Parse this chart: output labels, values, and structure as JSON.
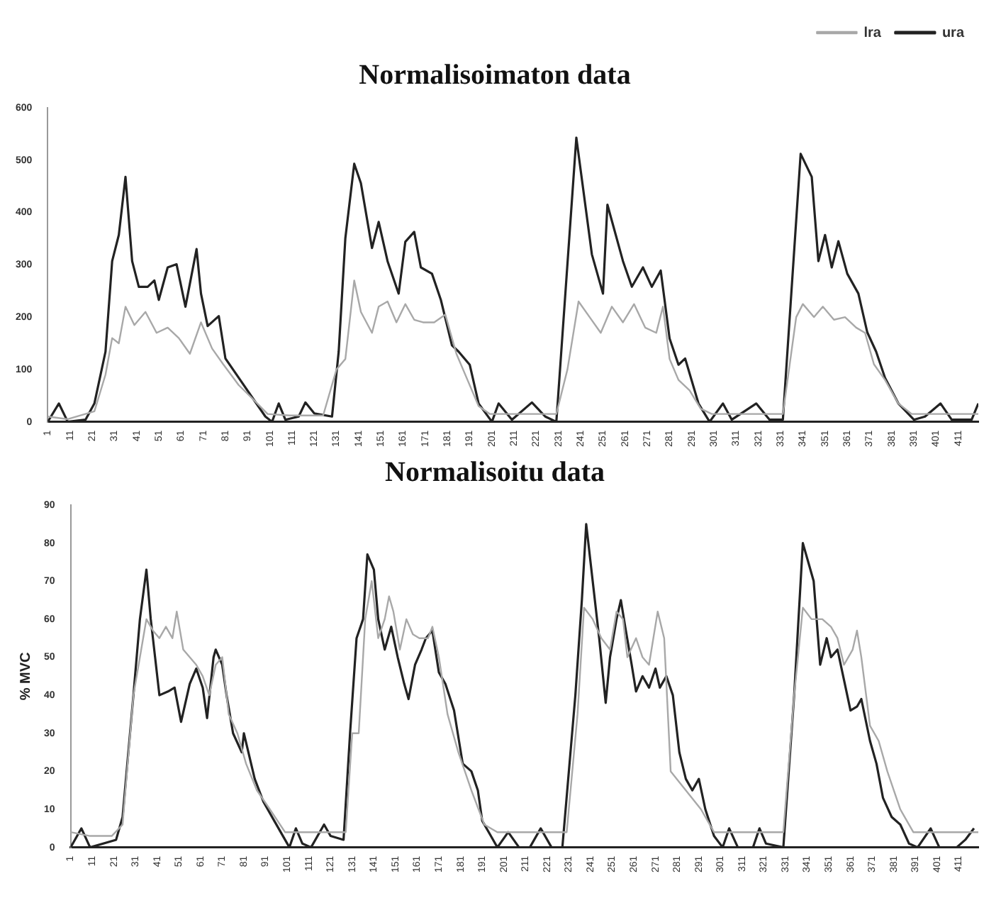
{
  "chart_data": [
    {
      "type": "line",
      "title": "Normalisoimaton data",
      "xlim": [
        1,
        420
      ],
      "xticks": [
        1,
        11,
        21,
        31,
        41,
        51,
        61,
        71,
        81,
        91,
        101,
        111,
        121,
        131,
        141,
        151,
        161,
        171,
        181,
        191,
        201,
        211,
        221,
        231,
        241,
        251,
        261,
        271,
        281,
        291,
        301,
        311,
        321,
        331,
        341,
        351,
        361,
        371,
        381,
        391,
        401,
        411
      ],
      "ylim": [
        0,
        600
      ],
      "yticks": [
        0,
        100,
        200,
        300,
        400,
        500,
        600
      ],
      "legend": "top right",
      "grid": false,
      "marker": "none",
      "series": [
        {
          "name": "lra",
          "color": "#a8a8a8",
          "x": [
            1,
            10,
            22,
            27,
            30,
            33,
            36,
            40,
            45,
            50,
            55,
            60,
            65,
            70,
            75,
            80,
            87,
            93,
            100,
            110,
            125,
            131,
            135,
            139,
            142,
            147,
            150,
            154,
            158,
            162,
            166,
            170,
            175,
            180,
            185,
            190,
            195,
            200,
            230,
            235,
            240,
            245,
            250,
            255,
            260,
            265,
            270,
            275,
            278,
            281,
            285,
            290,
            295,
            300,
            332,
            338,
            341,
            346,
            350,
            355,
            360,
            365,
            369,
            373,
            378,
            384,
            390,
            420
          ],
          "values": [
            10,
            5,
            20,
            90,
            160,
            150,
            220,
            185,
            210,
            170,
            180,
            160,
            130,
            190,
            140,
            110,
            70,
            45,
            15,
            12,
            12,
            100,
            120,
            270,
            210,
            170,
            220,
            230,
            190,
            225,
            195,
            190,
            190,
            205,
            130,
            80,
            30,
            15,
            15,
            100,
            230,
            200,
            170,
            220,
            190,
            225,
            180,
            170,
            220,
            120,
            80,
            60,
            25,
            15,
            15,
            200,
            225,
            200,
            220,
            195,
            200,
            180,
            170,
            110,
            80,
            35,
            15,
            15
          ]
        },
        {
          "name": "ura",
          "color": "#222222",
          "x": [
            1,
            6,
            10,
            18,
            22,
            27,
            30,
            33,
            36,
            39,
            42,
            46,
            49,
            51,
            55,
            59,
            63,
            68,
            70,
            73,
            78,
            81,
            87,
            93,
            99,
            102,
            105,
            108,
            114,
            117,
            121,
            129,
            132,
            135,
            139,
            142,
            147,
            150,
            154,
            159,
            162,
            166,
            169,
            174,
            178,
            183,
            186,
            191,
            195,
            201,
            204,
            210,
            219,
            225,
            230,
            239,
            246,
            251,
            253,
            260,
            264,
            269,
            273,
            277,
            281,
            285,
            288,
            294,
            299,
            305,
            309,
            320,
            326,
            332,
            340,
            345,
            348,
            351,
            354,
            357,
            361,
            366,
            370,
            374,
            378,
            384,
            391,
            396,
            403,
            408,
            417,
            420
          ],
          "values": [
            0,
            35,
            0,
            4,
            35,
            134,
            307,
            357,
            468,
            307,
            258,
            258,
            270,
            233,
            295,
            301,
            220,
            330,
            245,
            183,
            202,
            121,
            84,
            47,
            10,
            0,
            35,
            4,
            10,
            37,
            16,
            10,
            134,
            351,
            493,
            456,
            332,
            382,
            307,
            245,
            344,
            363,
            295,
            283,
            233,
            146,
            134,
            109,
            35,
            0,
            35,
            4,
            37,
            10,
            0,
            543,
            320,
            245,
            415,
            307,
            258,
            295,
            258,
            289,
            159,
            109,
            121,
            35,
            0,
            35,
            4,
            35,
            4,
            4,
            512,
            468,
            307,
            357,
            295,
            345,
            283,
            245,
            171,
            134,
            84,
            35,
            4,
            10,
            35,
            4,
            4,
            35
          ]
        }
      ]
    },
    {
      "type": "line",
      "title": "Normalisoitu data",
      "ylabel": "% MVC",
      "xlim": [
        1,
        420
      ],
      "xticks": [
        1,
        11,
        21,
        31,
        41,
        51,
        61,
        71,
        81,
        91,
        101,
        111,
        121,
        131,
        141,
        151,
        161,
        171,
        181,
        191,
        201,
        211,
        221,
        231,
        241,
        251,
        261,
        271,
        281,
        291,
        301,
        311,
        321,
        331,
        341,
        351,
        361,
        371,
        381,
        391,
        401,
        411
      ],
      "ylim": [
        0,
        90
      ],
      "yticks": [
        0,
        10,
        20,
        30,
        40,
        50,
        60,
        70,
        80,
        90
      ],
      "grid": false,
      "marker": "none",
      "series": [
        {
          "color": "#a8a8a8",
          "x": [
            1,
            10,
            20,
            25,
            30,
            33,
            36,
            39,
            42,
            45,
            48,
            50,
            53,
            56,
            59,
            62,
            65,
            68,
            71,
            74,
            78,
            82,
            87,
            93,
            100,
            110,
            128,
            131,
            134,
            137,
            140,
            143,
            146,
            148,
            150,
            153,
            156,
            159,
            162,
            166,
            168,
            171,
            175,
            180,
            186,
            192,
            198,
            230,
            235,
            238,
            242,
            246,
            250,
            253,
            256,
            258,
            262,
            265,
            268,
            272,
            275,
            278,
            285,
            292,
            298,
            330,
            335,
            339,
            343,
            348,
            352,
            355,
            358,
            362,
            364,
            366,
            370,
            374,
            378,
            384,
            390,
            420
          ],
          "values": [
            4,
            3,
            3,
            6,
            40,
            50,
            60,
            57,
            55,
            58,
            55,
            62,
            52,
            50,
            48,
            45,
            40,
            48,
            50,
            35,
            30,
            22,
            15,
            10,
            4,
            4,
            4,
            30,
            30,
            60,
            70,
            55,
            60,
            66,
            62,
            52,
            60,
            56,
            55,
            55,
            58,
            50,
            35,
            25,
            15,
            6,
            4,
            4,
            35,
            63,
            60,
            55,
            52,
            62,
            60,
            50,
            55,
            50,
            48,
            62,
            55,
            20,
            15,
            10,
            4,
            4,
            40,
            63,
            60,
            60,
            58,
            55,
            48,
            52,
            57,
            50,
            32,
            28,
            20,
            10,
            4,
            4
          ]
        },
        {
          "color": "#222222",
          "x": [
            1,
            6,
            10,
            22,
            25,
            30,
            33,
            36,
            38,
            42,
            46,
            49,
            52,
            56,
            59,
            62,
            64,
            67,
            68,
            71,
            73,
            76,
            80,
            81,
            86,
            90,
            95,
            100,
            102,
            105,
            108,
            112,
            118,
            121,
            127,
            130,
            133,
            136,
            138,
            141,
            143,
            146,
            149,
            152,
            155,
            157,
            160,
            163,
            165,
            168,
            171,
            174,
            178,
            182,
            186,
            189,
            191,
            195,
            198,
            203,
            208,
            213,
            218,
            223,
            228,
            234,
            237,
            239,
            242,
            245,
            248,
            250,
            253,
            255,
            257,
            260,
            262,
            265,
            268,
            271,
            273,
            276,
            279,
            282,
            285,
            288,
            291,
            294,
            298,
            302,
            305,
            309,
            316,
            319,
            322,
            330,
            335,
            339,
            342,
            344,
            347,
            350,
            352,
            355,
            358,
            361,
            364,
            366,
            370,
            373,
            376,
            380,
            384,
            388,
            392,
            398,
            402,
            410,
            414,
            418
          ],
          "values": [
            0,
            5,
            0,
            2,
            8,
            40,
            60,
            73,
            60,
            40,
            41,
            42,
            33,
            43,
            47,
            42,
            34,
            50,
            52,
            48,
            40,
            30,
            25,
            30,
            18,
            12,
            7,
            2,
            0,
            5,
            1,
            0,
            6,
            3,
            2,
            30,
            55,
            60,
            77,
            73,
            60,
            52,
            58,
            50,
            43,
            39,
            48,
            52,
            55,
            57,
            46,
            43,
            36,
            22,
            20,
            15,
            7,
            3,
            0,
            4,
            0,
            0,
            5,
            0,
            0,
            40,
            65,
            85,
            70,
            55,
            38,
            50,
            60,
            65,
            58,
            48,
            41,
            45,
            42,
            47,
            42,
            45,
            40,
            25,
            18,
            15,
            18,
            10,
            3,
            0,
            5,
            0,
            0,
            5,
            1,
            0,
            40,
            80,
            74,
            70,
            48,
            55,
            50,
            52,
            44,
            36,
            37,
            39,
            28,
            22,
            13,
            8,
            6,
            1,
            0,
            5,
            0,
            0,
            2,
            5
          ]
        }
      ]
    }
  ]
}
